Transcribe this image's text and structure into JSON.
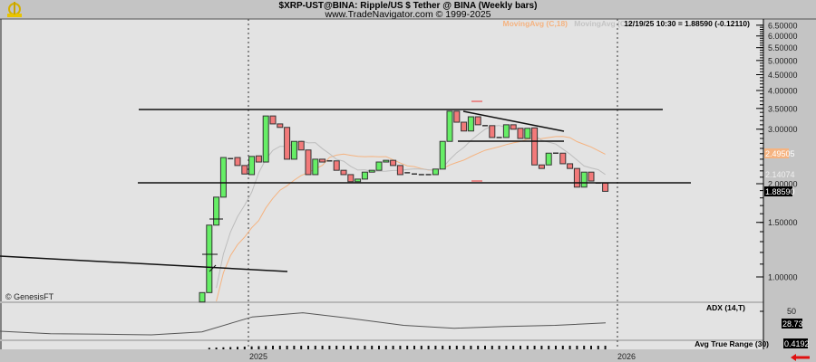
{
  "header": {
    "title": "$XRP-UST@BINA:  Ripple/US $ Tether @ BINA  (Weekly bars)",
    "subtitle": "www.TradeNavigator.com © 1999-2025",
    "readout": "12/19/25 10:30 = 1.88590 (-0.12110)",
    "ma18_legend": "MovingAvg (C,18)",
    "ma8_legend": "MovingAvg (C,8)",
    "copyright": "© GenesisFT"
  },
  "colors": {
    "up": "#66ee66",
    "down": "#f27a7a",
    "ma18": "#f5b380",
    "ma8": "#bdbdbd",
    "background": "#e3e3e3"
  },
  "chart_data": [
    {
      "type": "candlestick",
      "title": "$XRP-UST@BINA:  Ripple/US $ Tether @ BINA  (Weekly bars)",
      "y_scale": "log",
      "ylim": [
        0.8,
        6.6
      ],
      "y_ticks": [
        "6.50000",
        "6.00000",
        "5.50000",
        "5.00000",
        "4.50000",
        "4.00000",
        "3.50000",
        "3.00000",
        "2.00000",
        "1.50000",
        "1.00000"
      ],
      "y_tick_values": [
        6.5,
        6.0,
        5.5,
        5.0,
        4.5,
        4.0,
        3.5,
        3.0,
        2.0,
        1.5,
        1.0
      ],
      "x_ticks": [
        "2025",
        "2026"
      ],
      "last_price_label": "1.88590",
      "ma18_label": "2.49505",
      "ma8_label": "2.14074",
      "candles": [
        [
          0.83,
          0.89
        ],
        [
          0.89,
          1.47
        ],
        [
          1.47,
          1.81
        ],
        [
          1.81,
          2.43
        ],
        [
          2.41,
          2.41
        ],
        [
          2.43,
          2.29
        ],
        [
          2.29,
          2.15
        ],
        [
          2.14,
          2.45
        ],
        [
          2.46,
          2.35
        ],
        [
          2.35,
          3.31
        ],
        [
          3.31,
          3.12
        ],
        [
          3.12,
          3.04
        ],
        [
          3.04,
          2.4
        ],
        [
          2.4,
          2.74
        ],
        [
          2.74,
          2.57
        ],
        [
          2.57,
          2.14
        ],
        [
          2.14,
          2.4
        ],
        [
          2.4,
          2.35
        ],
        [
          2.37,
          2.37
        ],
        [
          2.37,
          2.21
        ],
        [
          2.21,
          2.14
        ],
        [
          2.14,
          2.03
        ],
        [
          2.03,
          2.07
        ],
        [
          2.07,
          2.18
        ],
        [
          2.18,
          2.21
        ],
        [
          2.21,
          2.35
        ],
        [
          2.35,
          2.38
        ],
        [
          2.38,
          2.29
        ],
        [
          2.29,
          2.14
        ],
        [
          2.17,
          2.17
        ],
        [
          2.15,
          2.15
        ],
        [
          2.14,
          2.14
        ],
        [
          2.14,
          2.14
        ],
        [
          2.14,
          2.23
        ],
        [
          2.23,
          2.74
        ],
        [
          2.74,
          3.43
        ],
        [
          3.43,
          3.16
        ],
        [
          3.16,
          2.96
        ],
        [
          2.96,
          3.29
        ],
        [
          3.29,
          3.1
        ],
        [
          3.08,
          3.08
        ],
        [
          3.08,
          2.82
        ],
        [
          2.82,
          2.82
        ],
        [
          2.82,
          3.1
        ],
        [
          3.1,
          3.0
        ],
        [
          3.02,
          2.8
        ],
        [
          2.8,
          3.02
        ],
        [
          3.03,
          2.3
        ],
        [
          2.3,
          2.24
        ],
        [
          2.3,
          2.51
        ],
        [
          2.51,
          2.51
        ],
        [
          2.51,
          2.32
        ],
        [
          2.32,
          2.24
        ],
        [
          2.24,
          1.95
        ],
        [
          1.95,
          2.18
        ],
        [
          2.18,
          2.04
        ],
        [
          2.01,
          2.01
        ],
        [
          2.01,
          1.89
        ]
      ],
      "moving_averages": [
        {
          "name": "MovingAvg (C,18)",
          "period": 18
        },
        {
          "name": "MovingAvg (C,8)",
          "period": 8
        }
      ],
      "horizontal_levels": [
        3.47,
        2.01,
        2.74
      ]
    },
    {
      "type": "line",
      "title": "ADX (14,T)",
      "y_ticks": [
        "50"
      ],
      "last_value_label": "28.73",
      "values": [
        15,
        11,
        10,
        9,
        14,
        39,
        46,
        36,
        25,
        20,
        23,
        25,
        29
      ]
    },
    {
      "type": "bar",
      "title": "Avg True Range (30)",
      "last_value_label": "0.4192"
    }
  ]
}
